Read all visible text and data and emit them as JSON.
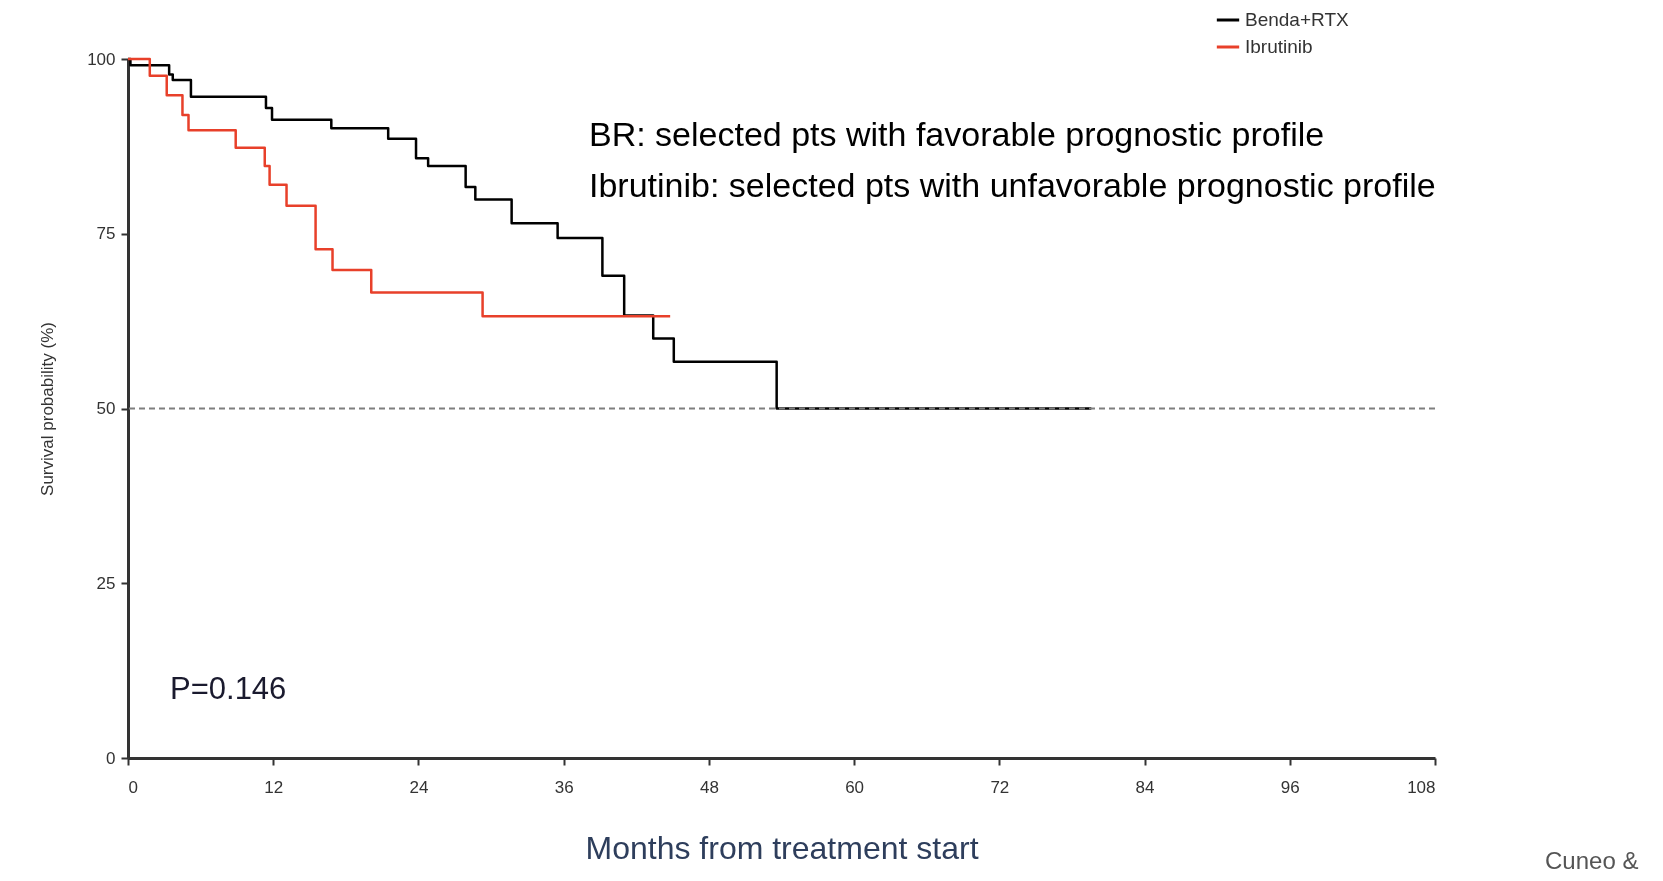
{
  "chart_data": {
    "type": "step",
    "xlabel": "Months from treatment start",
    "ylabel": "Survival probability (%)",
    "xlim": [
      0,
      108
    ],
    "xticks": [
      0,
      12,
      24,
      36,
      48,
      60,
      72,
      84,
      96,
      108
    ],
    "ylim": [
      0,
      100
    ],
    "yticks": [
      0,
      25,
      50,
      75,
      100
    ],
    "grid": false,
    "legend": "top right",
    "line_style": "solid",
    "series": [
      {
        "name": "Benda+RTX",
        "color": "#000000",
        "x": [
          0,
          0.2,
          3.4,
          3.7,
          5.2,
          11.4,
          11.9,
          13.1,
          16.8,
          21.5,
          23.8,
          24.8,
          27.9,
          28.7,
          31.7,
          35.5,
          39.2,
          41.0,
          43.4,
          45.1,
          53.6,
          79.6
        ],
        "values": [
          100,
          99.1,
          97.8,
          97.0,
          94.6,
          93.0,
          91.3,
          91.3,
          90.1,
          88.6,
          85.8,
          84.7,
          81.7,
          79.9,
          76.5,
          74.4,
          69.0,
          63.3,
          60.0,
          56.7,
          50.0,
          50.0
        ]
      },
      {
        "name": "Ibrutinib",
        "color": "#e8402a",
        "x": [
          0,
          1.8,
          3.2,
          4.5,
          5.0,
          8.9,
          11.3,
          11.7,
          13.1,
          15.5,
          16.9,
          20.1,
          29.3,
          44.8
        ],
        "values": [
          100,
          97.6,
          94.8,
          92.0,
          89.8,
          87.3,
          84.7,
          82.0,
          79.0,
          72.8,
          69.8,
          66.6,
          63.2,
          63.2
        ]
      }
    ],
    "ref_lines": [
      {
        "axis": "y",
        "value": 50,
        "color": "#7f7f7f",
        "line_style": "dashed"
      }
    ],
    "annotations": [
      "BR: selected pts with favorable prognostic profile",
      "Ibrutinib: selected pts with unfavorable prognostic profile",
      "P=0.146",
      "Cuneo &"
    ]
  }
}
